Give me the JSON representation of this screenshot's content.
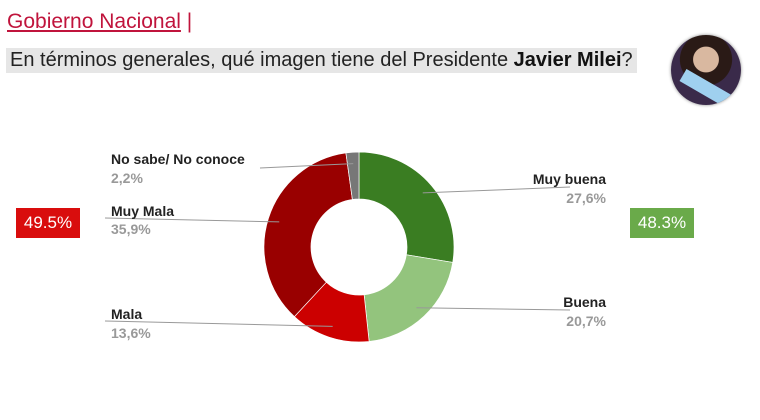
{
  "header": {
    "title": "Gobierno Nacional",
    "separator": "|"
  },
  "question": {
    "text": "En términos generales, qué imagen tiene del Presidente ",
    "bold": "Javier Milei",
    "end": "?"
  },
  "totals": {
    "negative": "49.5%",
    "negative_color": "#d90d0d",
    "positive": "48.3%",
    "positive_color": "#6aaa4a"
  },
  "chart_data": {
    "type": "donut",
    "series": [
      {
        "label": "Muy buena",
        "value": 27.6,
        "display": "27,6%",
        "color": "#3a7d22"
      },
      {
        "label": "Buena",
        "value": 20.7,
        "display": "20,7%",
        "color": "#93c47d"
      },
      {
        "label": "Mala",
        "value": 13.6,
        "display": "13,6%",
        "color": "#cc0000"
      },
      {
        "label": "Muy Mala",
        "value": 35.9,
        "display": "35,9%",
        "color": "#990000"
      },
      {
        "label": "No sabe/ No conoce",
        "value": 2.2,
        "display": "2,2%",
        "color": "#777777"
      }
    ]
  }
}
